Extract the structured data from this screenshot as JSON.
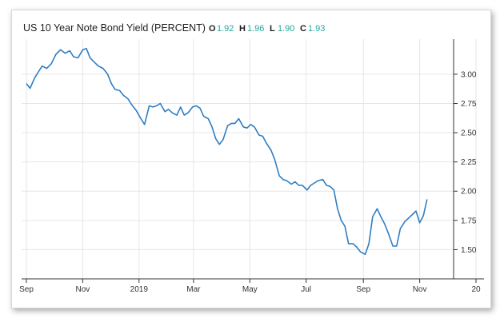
{
  "header": {
    "title": "US 10 Year Note Bond Yield (PERCENT)",
    "ohlc": [
      {
        "key": "O",
        "value": "1.92"
      },
      {
        "key": "H",
        "value": "1.96"
      },
      {
        "key": "L",
        "value": "1.90"
      },
      {
        "key": "C",
        "value": "1.93"
      }
    ]
  },
  "colors": {
    "line": "#2f7ec2",
    "ohlc_value": "#26a69a",
    "grid": "#e6e6e6",
    "axis": "#333333"
  },
  "chart_data": {
    "type": "line",
    "title": "US 10 Year Note Bond Yield (PERCENT)",
    "xlabel": "",
    "ylabel": "",
    "ylim": [
      1.25,
      3.3
    ],
    "y_ticks": [
      "3.00",
      "2.75",
      "2.50",
      "2.25",
      "2.00",
      "1.75",
      "1.50"
    ],
    "x_ticks": [
      "Sep",
      "Nov",
      "2019",
      "Mar",
      "May",
      "Jul",
      "Sep",
      "Nov",
      "20"
    ],
    "grid": true,
    "legend": "none",
    "series": [
      {
        "x": [
          "2018-09-01",
          "2018-09-05",
          "2018-09-10",
          "2018-09-14",
          "2018-09-18",
          "2018-09-23",
          "2018-09-28",
          "2018-10-03",
          "2018-10-08",
          "2018-10-13",
          "2018-10-18",
          "2018-10-22",
          "2018-10-27",
          "2018-11-01",
          "2018-11-05",
          "2018-11-09",
          "2018-11-14",
          "2018-11-18",
          "2018-11-23",
          "2018-11-28",
          "2018-12-02",
          "2018-12-06",
          "2018-12-11",
          "2018-12-15",
          "2018-12-20",
          "2018-12-24",
          "2018-12-29",
          "2019-01-03",
          "2019-01-07",
          "2019-01-12",
          "2019-01-16",
          "2019-01-20",
          "2019-01-24",
          "2019-01-29",
          "2019-02-02",
          "2019-02-06",
          "2019-02-11",
          "2019-02-15",
          "2019-02-19",
          "2019-02-23",
          "2019-02-28",
          "2019-03-04",
          "2019-03-08",
          "2019-03-12",
          "2019-03-17",
          "2019-03-21",
          "2019-03-25",
          "2019-03-29",
          "2019-04-02",
          "2019-04-07",
          "2019-04-11",
          "2019-04-15",
          "2019-04-19",
          "2019-04-24",
          "2019-04-28",
          "2019-05-02",
          "2019-05-06",
          "2019-05-11",
          "2019-05-15",
          "2019-05-19",
          "2019-05-24",
          "2019-05-28",
          "2019-06-02",
          "2019-06-06",
          "2019-06-10",
          "2019-06-15",
          "2019-06-19",
          "2019-06-23",
          "2019-06-27",
          "2019-07-02",
          "2019-07-06",
          "2019-07-10",
          "2019-07-14",
          "2019-07-19",
          "2019-07-23",
          "2019-07-27",
          "2019-07-31",
          "2019-08-04",
          "2019-08-08",
          "2019-08-12",
          "2019-08-16",
          "2019-08-21",
          "2019-08-25",
          "2019-08-29",
          "2019-09-03",
          "2019-09-07",
          "2019-09-11",
          "2019-09-16",
          "2019-09-20",
          "2019-09-24",
          "2019-09-28",
          "2019-10-03",
          "2019-10-07",
          "2019-10-11",
          "2019-10-16",
          "2019-10-20",
          "2019-10-24",
          "2019-10-28",
          "2019-11-01",
          "2019-11-05",
          "2019-11-09"
        ],
        "values": [
          2.92,
          2.88,
          2.97,
          3.02,
          3.07,
          3.05,
          3.09,
          3.17,
          3.21,
          3.18,
          3.2,
          3.15,
          3.14,
          3.21,
          3.22,
          3.14,
          3.1,
          3.07,
          3.05,
          3.0,
          2.92,
          2.87,
          2.86,
          2.82,
          2.79,
          2.74,
          2.69,
          2.62,
          2.57,
          2.73,
          2.72,
          2.73,
          2.75,
          2.68,
          2.7,
          2.67,
          2.65,
          2.72,
          2.65,
          2.67,
          2.72,
          2.73,
          2.71,
          2.64,
          2.62,
          2.55,
          2.45,
          2.4,
          2.44,
          2.56,
          2.58,
          2.58,
          2.62,
          2.55,
          2.54,
          2.57,
          2.55,
          2.48,
          2.47,
          2.41,
          2.35,
          2.27,
          2.13,
          2.1,
          2.09,
          2.06,
          2.08,
          2.05,
          2.05,
          2.01,
          2.05,
          2.07,
          2.09,
          2.1,
          2.05,
          2.04,
          2.01,
          1.85,
          1.75,
          1.7,
          1.55,
          1.55,
          1.52,
          1.48,
          1.46,
          1.55,
          1.78,
          1.85,
          1.78,
          1.72,
          1.64,
          1.53,
          1.53,
          1.68,
          1.74,
          1.77,
          1.8,
          1.83,
          1.73,
          1.79,
          1.93
        ]
      }
    ]
  }
}
